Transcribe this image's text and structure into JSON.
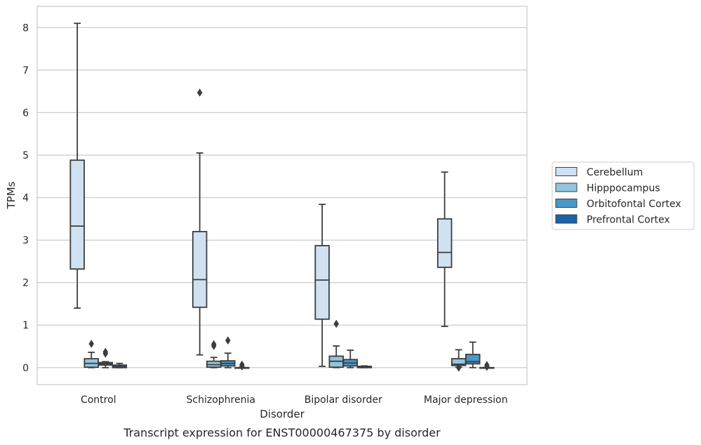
{
  "chart_data": {
    "type": "box",
    "title": "",
    "caption": "Transcript expression for ENST00000467375 by disorder",
    "xlabel": "Disorder",
    "ylabel": "TPMs",
    "ylim": [
      -0.4,
      8.5
    ],
    "yticks": [
      0,
      1,
      2,
      3,
      4,
      5,
      6,
      7,
      8
    ],
    "grid": true,
    "legend_position": "right",
    "categories": [
      "Control",
      "Schizophrenia",
      "Bipolar disorder",
      "Major depression"
    ],
    "series": [
      {
        "name": "Cerebellum",
        "color": "#d0e1f2",
        "boxes": [
          {
            "whisker_low": 1.4,
            "q1": 2.32,
            "median": 3.33,
            "q3": 4.88,
            "whisker_high": 8.1,
            "outliers": []
          },
          {
            "whisker_low": 0.3,
            "q1": 1.42,
            "median": 2.07,
            "q3": 3.2,
            "whisker_high": 5.05,
            "outliers": [
              6.47
            ]
          },
          {
            "whisker_low": 0.03,
            "q1": 1.14,
            "median": 2.06,
            "q3": 2.87,
            "whisker_high": 3.84,
            "outliers": []
          },
          {
            "whisker_low": 0.97,
            "q1": 2.36,
            "median": 2.71,
            "q3": 3.5,
            "whisker_high": 4.6,
            "outliers": []
          }
        ]
      },
      {
        "name": "Hipppocampus",
        "color": "#94c4df",
        "boxes": [
          {
            "whisker_low": 0.0,
            "q1": 0.01,
            "median": 0.1,
            "q3": 0.21,
            "whisker_high": 0.36,
            "outliers": [
              0.56
            ]
          },
          {
            "whisker_low": 0.0,
            "q1": 0.01,
            "median": 0.07,
            "q3": 0.15,
            "whisker_high": 0.24,
            "outliers": [
              0.51,
              0.55
            ]
          },
          {
            "whisker_low": 0.0,
            "q1": 0.01,
            "median": 0.15,
            "q3": 0.27,
            "whisker_high": 0.51,
            "outliers": [
              1.03
            ]
          },
          {
            "whisker_low": 0.01,
            "q1": 0.05,
            "median": 0.08,
            "q3": 0.21,
            "whisker_high": 0.42,
            "outliers": [
              0.0
            ]
          }
        ]
      },
      {
        "name": "Orbitofontal Cortex",
        "color": "#4a98c9",
        "boxes": [
          {
            "whisker_low": 0.0,
            "q1": 0.06,
            "median": 0.09,
            "q3": 0.12,
            "whisker_high": 0.14,
            "outliers": [
              0.33,
              0.37
            ]
          },
          {
            "whisker_low": 0.0,
            "q1": 0.04,
            "median": 0.1,
            "q3": 0.16,
            "whisker_high": 0.34,
            "outliers": [
              0.64
            ]
          },
          {
            "whisker_low": 0.0,
            "q1": 0.04,
            "median": 0.11,
            "q3": 0.19,
            "whisker_high": 0.41,
            "outliers": []
          },
          {
            "whisker_low": 0.0,
            "q1": 0.09,
            "median": 0.14,
            "q3": 0.31,
            "whisker_high": 0.6,
            "outliers": []
          }
        ]
      },
      {
        "name": "Prefrontal Cortex",
        "color": "#1764ab",
        "boxes": [
          {
            "whisker_low": 0.0,
            "q1": 0.0,
            "median": 0.02,
            "q3": 0.06,
            "whisker_high": 0.1,
            "outliers": []
          },
          {
            "whisker_low": 0.0,
            "q1": 0.0,
            "median": 0.0,
            "q3": 0.0,
            "whisker_high": 0.0,
            "outliers": [
              0.03,
              0.07
            ]
          },
          {
            "whisker_low": 0.0,
            "q1": 0.0,
            "median": 0.01,
            "q3": 0.03,
            "whisker_high": 0.04,
            "outliers": []
          },
          {
            "whisker_low": 0.0,
            "q1": 0.0,
            "median": 0.0,
            "q3": 0.0,
            "whisker_high": 0.0,
            "outliers": [
              0.02,
              0.06
            ]
          }
        ]
      }
    ]
  }
}
